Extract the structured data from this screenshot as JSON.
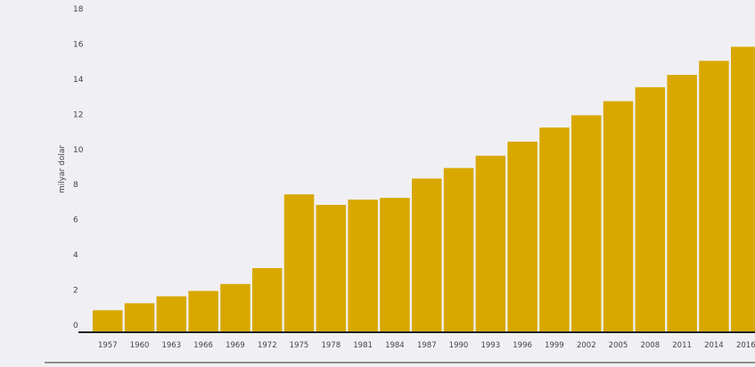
{
  "chart_data": {
    "type": "bar",
    "ylabel": "milyar dolar",
    "ylim": [
      0,
      18
    ],
    "yticks": [
      0,
      2,
      4,
      6,
      8,
      10,
      12,
      14,
      16,
      18
    ],
    "grid": false,
    "categories": [
      "1957",
      "1960",
      "1963",
      "1966",
      "1969",
      "1972",
      "1975",
      "1978",
      "1981",
      "1984",
      "1987",
      "1990",
      "1993",
      "1996",
      "1999",
      "2002",
      "2005",
      "2008",
      "2011",
      "2014",
      "2016"
    ],
    "values": [
      1.2,
      1.6,
      2.0,
      2.3,
      2.7,
      3.6,
      7.8,
      7.2,
      7.5,
      7.6,
      8.7,
      9.3,
      10.0,
      10.8,
      11.6,
      12.3,
      13.1,
      13.9,
      14.6,
      15.4,
      16.2
    ],
    "colors": {
      "bar": "#d8a800",
      "background": "#f0f0f4",
      "axis": "#222222"
    }
  }
}
